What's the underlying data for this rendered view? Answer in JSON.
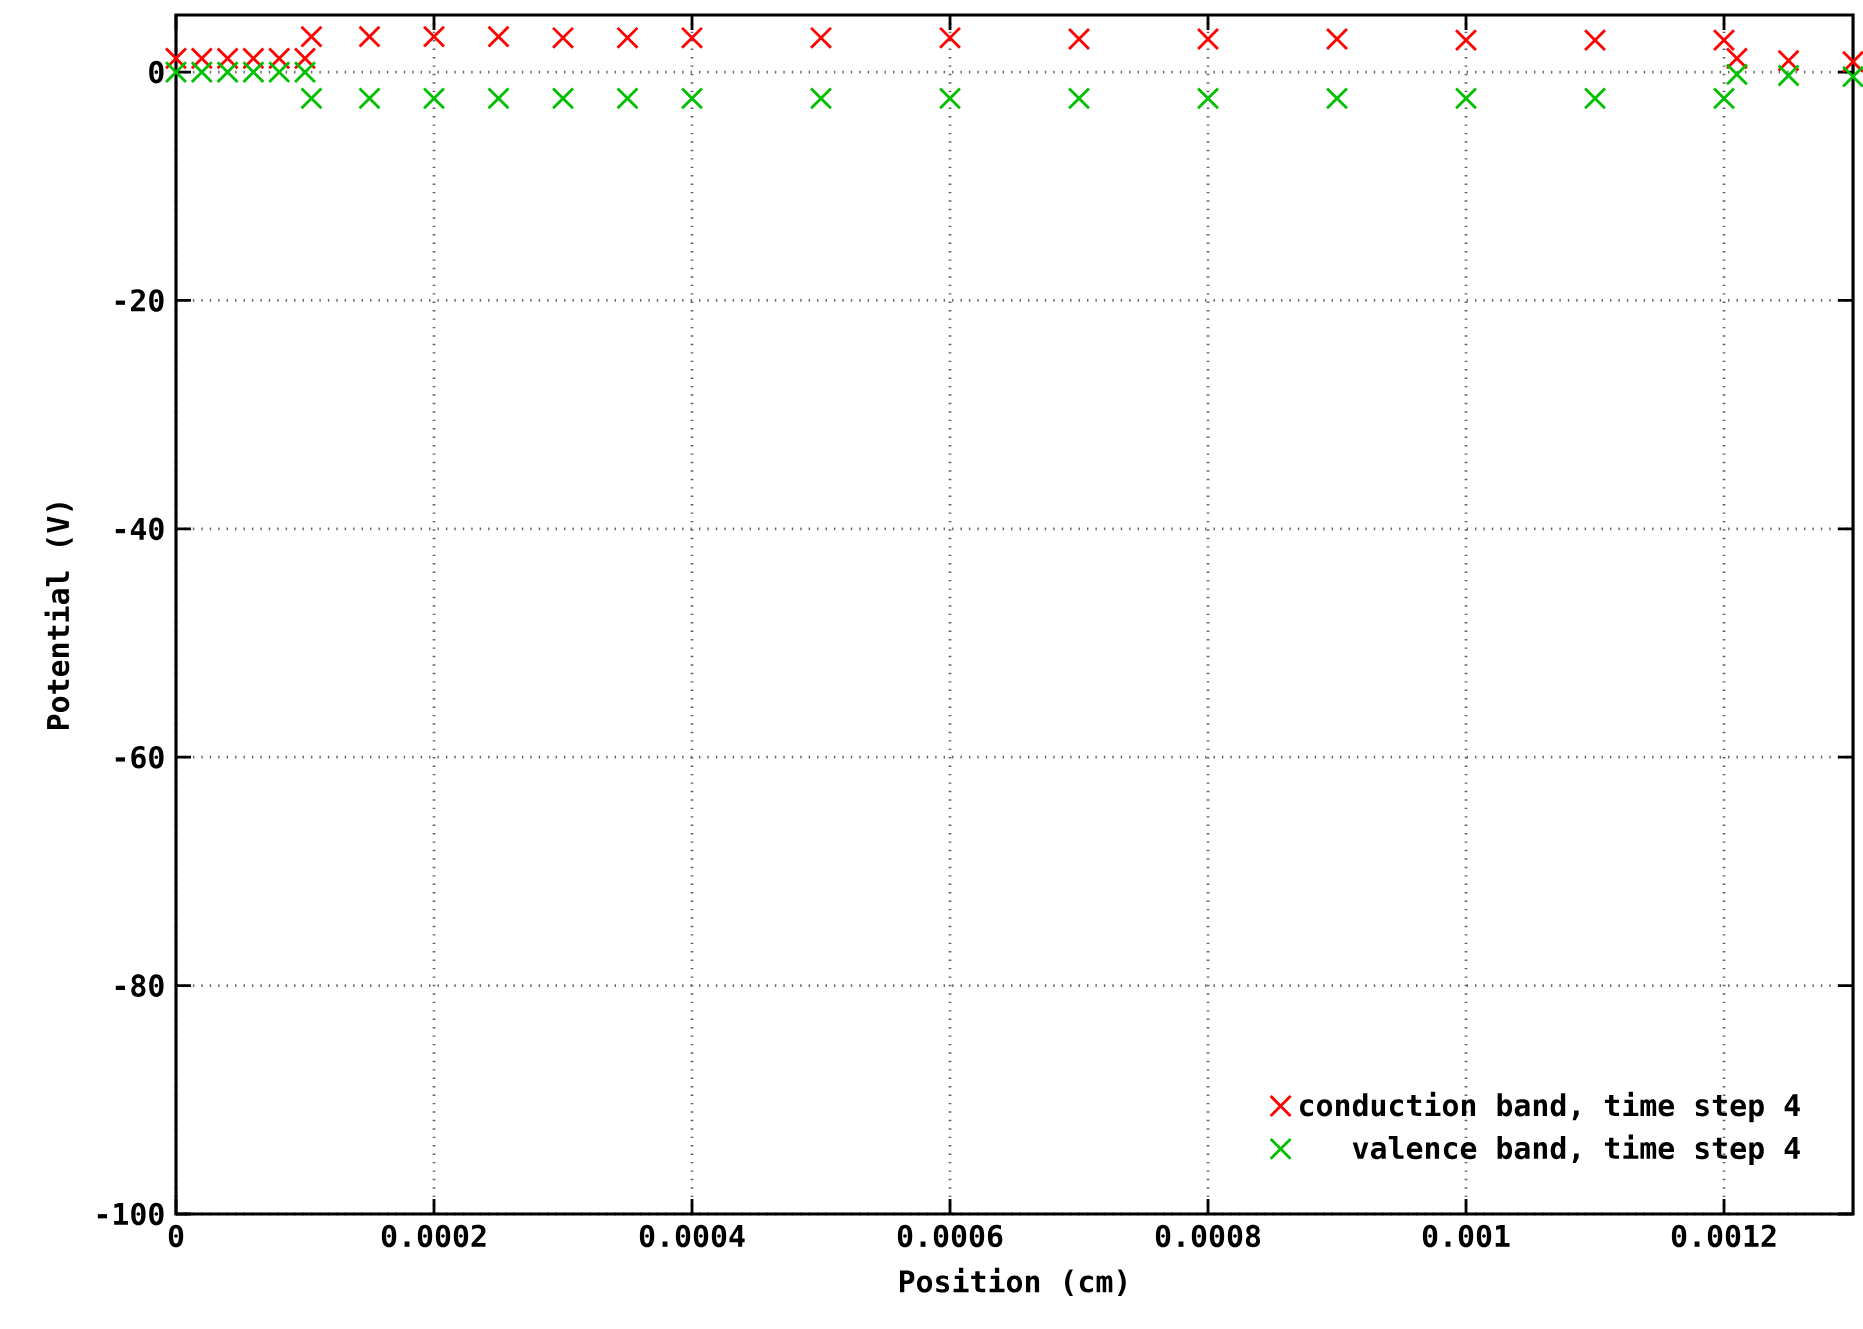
{
  "chart_data": {
    "type": "scatter",
    "xlabel": "Position (cm)",
    "ylabel": "Potential (V)",
    "xlim": [
      0,
      0.0013
    ],
    "ylim": [
      -100,
      5
    ],
    "xticks": [
      0,
      0.0002,
      0.0004,
      0.0006,
      0.0008,
      0.001,
      0.0012
    ],
    "yticks": [
      -100,
      -80,
      -60,
      -40,
      -20,
      0
    ],
    "grid": true,
    "legend": "bottom right",
    "series": [
      {
        "name": "conduction band, time step 4",
        "color": "#ff0000",
        "marker": "cross",
        "x": [
          0,
          2e-05,
          4e-05,
          6e-05,
          8e-05,
          0.0001,
          0.000105,
          0.00015,
          0.0002,
          0.00025,
          0.0003,
          0.00035,
          0.0004,
          0.0005,
          0.0006,
          0.0007,
          0.0008,
          0.0009,
          0.001,
          0.0011,
          0.0012,
          0.00121,
          0.00125,
          0.0013
        ],
        "values": [
          1.2,
          1.2,
          1.2,
          1.2,
          1.2,
          1.2,
          3.1,
          3.1,
          3.1,
          3.1,
          3.0,
          3.0,
          3.0,
          3.0,
          3.0,
          2.9,
          2.9,
          2.9,
          2.8,
          2.8,
          2.8,
          1.2,
          1.0,
          0.9
        ]
      },
      {
        "name": "valence band, time step 4",
        "color": "#00c000",
        "marker": "cross",
        "x": [
          0,
          2e-05,
          4e-05,
          6e-05,
          8e-05,
          0.0001,
          0.000105,
          0.00015,
          0.0002,
          0.00025,
          0.0003,
          0.00035,
          0.0004,
          0.0005,
          0.0006,
          0.0007,
          0.0008,
          0.0009,
          0.001,
          0.0011,
          0.0012,
          0.00121,
          0.00125,
          0.0013
        ],
        "values": [
          0.0,
          0.0,
          0.0,
          0.0,
          0.0,
          0.0,
          -2.3,
          -2.3,
          -2.3,
          -2.3,
          -2.3,
          -2.3,
          -2.3,
          -2.3,
          -2.3,
          -2.3,
          -2.3,
          -2.3,
          -2.3,
          -2.3,
          -2.3,
          -0.2,
          -0.3,
          -0.4
        ]
      }
    ]
  }
}
